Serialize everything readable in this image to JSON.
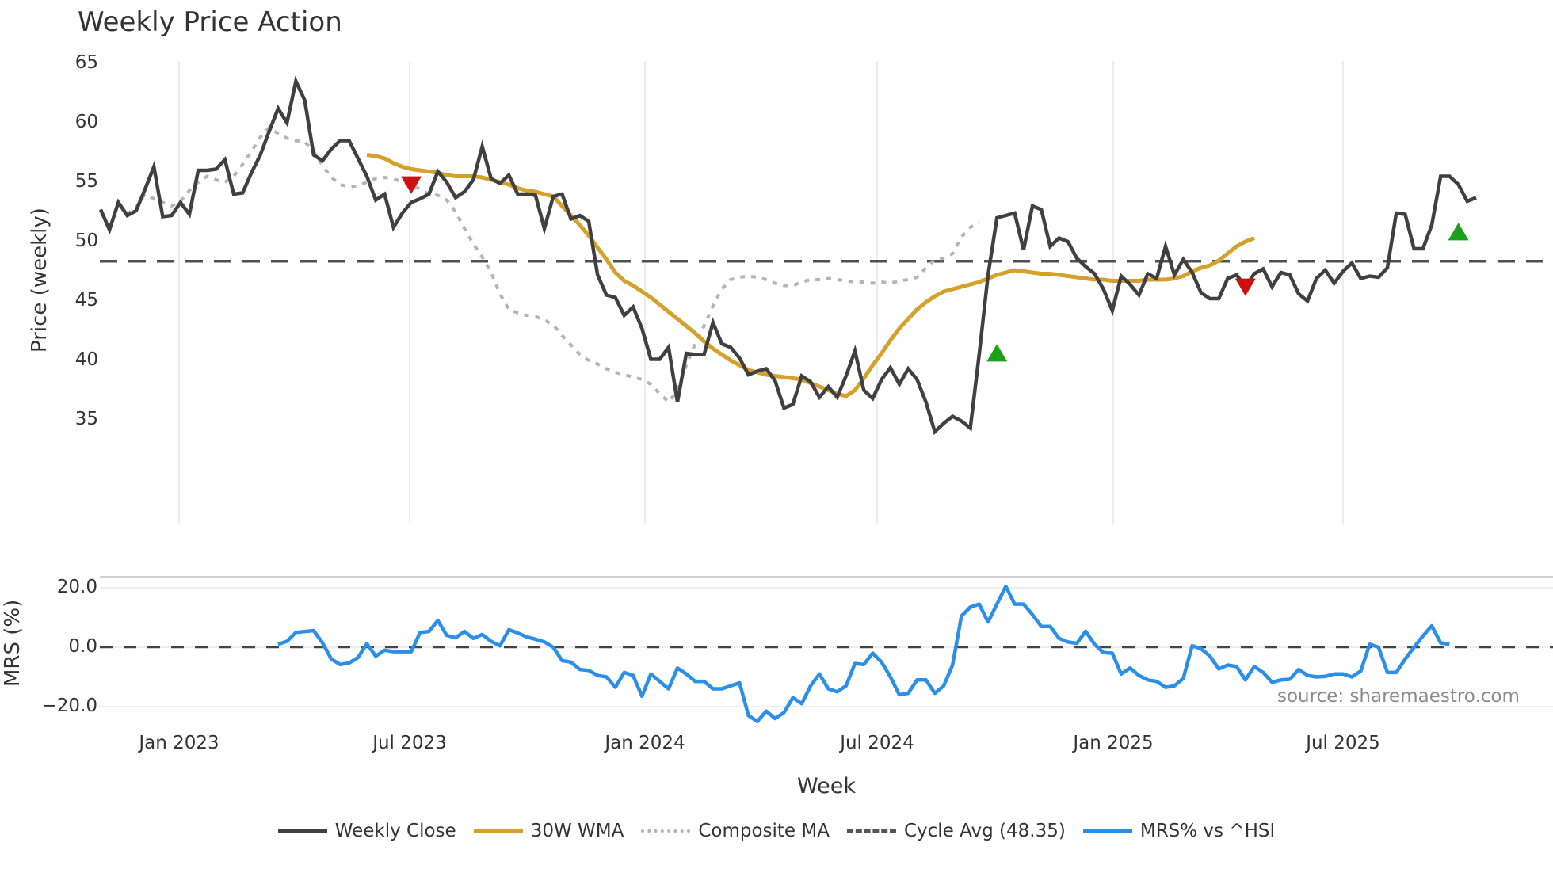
{
  "title": "Weekly Price Action",
  "source": "source: sharemaestro.com",
  "price_axis": {
    "label": "Price (weekly)",
    "ticks": [
      "65",
      "60",
      "55",
      "50",
      "45",
      "40",
      "35"
    ]
  },
  "mrs_axis": {
    "label": "MRS (%)",
    "ticks": [
      "20.0",
      "0.0",
      "−20.0"
    ]
  },
  "x_axis": {
    "label": "Week",
    "ticks": [
      "Jan 2023",
      "Jul 2023",
      "Jan 2024",
      "Jul 2024",
      "Jan 2025",
      "Jul 2025"
    ]
  },
  "legend": [
    {
      "label": "Weekly Close",
      "color": "#404040",
      "style": "solid"
    },
    {
      "label": "30W WMA",
      "color": "#d4a22c",
      "style": "solid"
    },
    {
      "label": "Composite MA",
      "color": "#b4b4b4",
      "style": "dotted"
    },
    {
      "label": "Cycle Avg (48.35)",
      "color": "#555555",
      "style": "dashed"
    },
    {
      "label": "MRS% vs ^HSI",
      "color": "#2b8ee8",
      "style": "solid"
    }
  ],
  "chart_data": [
    {
      "type": "line",
      "title": "Weekly Price Action",
      "xlabel": "Week",
      "ylabel": "Price (weekly)",
      "ylim": [
        32,
        65.5
      ],
      "x_tick_labels": [
        "Jan 2023",
        "Jul 2023",
        "Jan 2024",
        "Jul 2024",
        "Jan 2025",
        "Jul 2025"
      ],
      "grid": "vertical",
      "series": [
        {
          "name": "Weekly Close",
          "color": "#404040",
          "values": [
            52.7,
            51.0,
            53.3,
            52.2,
            52.6,
            54.4,
            56.3,
            52.1,
            52.2,
            53.3,
            52.3,
            56.0,
            56.0,
            56.1,
            56.9,
            54.0,
            54.1,
            55.8,
            57.3,
            59.3,
            61.2,
            60.0,
            63.5,
            61.9,
            57.3,
            56.8,
            57.8,
            58.5,
            58.5,
            57.0,
            55.5,
            53.5,
            54.0,
            51.2,
            52.4,
            53.3,
            53.6,
            54.0,
            55.9,
            55.0,
            53.7,
            54.2,
            55.2,
            58.0,
            55.3,
            54.9,
            55.6,
            54.0,
            54.0,
            53.9,
            51.1,
            53.8,
            54.0,
            51.9,
            52.2,
            51.7,
            47.2,
            45.5,
            45.3,
            43.8,
            44.5,
            42.7,
            40.1,
            40.1,
            41.1,
            36.5,
            40.6,
            40.5,
            40.5,
            43.2,
            41.4,
            41.1,
            40.2,
            38.8,
            39.1,
            39.3,
            38.3,
            36.0,
            36.3,
            38.7,
            38.2,
            36.9,
            37.8,
            36.9,
            38.7,
            40.8,
            37.5,
            36.8,
            38.4,
            39.4,
            38.0,
            39.3,
            38.4,
            36.5,
            34.0,
            34.7,
            35.3,
            34.9,
            34.3,
            40.5,
            47.2,
            52.0,
            52.2,
            52.4,
            49.3,
            53.0,
            52.7,
            49.6,
            50.3,
            50.0,
            48.6,
            47.9,
            47.3,
            46.0,
            44.2,
            47.1,
            46.4,
            45.5,
            47.3,
            46.9,
            49.6,
            47.2,
            48.5,
            47.4,
            45.7,
            45.2,
            45.2,
            46.9,
            47.2,
            46.2,
            47.3,
            47.7,
            46.2,
            47.4,
            47.2,
            45.6,
            45.0,
            46.9,
            47.6,
            46.5,
            47.5,
            48.2,
            46.9,
            47.1,
            47.0,
            47.8,
            52.4,
            52.3,
            49.4,
            49.4,
            51.4,
            55.5,
            55.5,
            54.8,
            53.4,
            53.7
          ]
        },
        {
          "name": "30W WMA",
          "color": "#d4a22c",
          "start_index": 30,
          "values": [
            57.3,
            57.2,
            57.0,
            56.6,
            56.3,
            56.1,
            56.0,
            55.9,
            55.8,
            55.6,
            55.5,
            55.5,
            55.5,
            55.4,
            55.2,
            55.0,
            54.8,
            54.5,
            54.3,
            54.2,
            54.0,
            53.8,
            53.0,
            52.2,
            51.4,
            50.5,
            49.5,
            48.5,
            47.4,
            46.7,
            46.3,
            45.8,
            45.3,
            44.7,
            44.1,
            43.5,
            42.9,
            42.3,
            41.6,
            41.0,
            40.5,
            40.0,
            39.6,
            39.2,
            39.0,
            38.8,
            38.7,
            38.6,
            38.5,
            38.4,
            38.1,
            37.8,
            37.5,
            37.2,
            37.0,
            37.5,
            38.5,
            39.6,
            40.6,
            41.7,
            42.7,
            43.5,
            44.3,
            44.9,
            45.4,
            45.8,
            46.0,
            46.2,
            46.4,
            46.6,
            46.9,
            47.2,
            47.4,
            47.6,
            47.5,
            47.4,
            47.3,
            47.3,
            47.2,
            47.1,
            47.0,
            46.9,
            46.8,
            46.8,
            46.7,
            46.7,
            46.7,
            46.7,
            46.8,
            46.8,
            46.8,
            46.9,
            47.1,
            47.5,
            47.8,
            48.0,
            48.4,
            49.0,
            49.6,
            50.0,
            50.3
          ]
        },
        {
          "name": "Composite MA",
          "color": "#b4b4b4",
          "start_index": 3,
          "values": [
            52.3,
            52.9,
            54.0,
            53.6,
            53.3,
            53.0,
            53.4,
            54.3,
            55.0,
            55.5,
            55.2,
            55.0,
            55.5,
            56.5,
            57.6,
            58.8,
            59.6,
            59.1,
            58.7,
            58.5,
            58.4,
            57.6,
            56.4,
            55.4,
            54.8,
            54.6,
            54.7,
            55.0,
            55.3,
            55.4,
            55.3,
            55.0,
            54.8,
            54.4,
            54.0,
            53.9,
            53.5,
            52.5,
            51.1,
            49.8,
            48.7,
            47.4,
            45.6,
            44.3,
            44.0,
            43.8,
            43.7,
            43.4,
            43.0,
            42.1,
            41.3,
            40.5,
            40.0,
            39.7,
            39.3,
            39.0,
            38.8,
            38.6,
            38.4,
            38.0,
            37.2,
            36.5,
            37.5,
            39.6,
            41.4,
            42.9,
            44.6,
            46.0,
            46.8,
            47.0,
            47.1,
            47.0,
            46.8,
            46.5,
            46.3,
            46.3,
            46.6,
            46.8,
            46.8,
            46.9,
            46.8,
            46.7,
            46.6,
            46.6,
            46.5,
            46.6,
            46.5,
            46.7,
            46.8,
            47.0,
            47.8,
            48.5,
            48.6,
            49.0,
            50.4,
            51.2,
            51.6
          ]
        },
        {
          "name": "Cycle Avg (48.35)",
          "color": "#555555",
          "constant": 48.35
        }
      ],
      "markers": [
        {
          "type": "sell",
          "shape": "triangle-down",
          "color": "#cc1111",
          "x_week_index": 35,
          "y": 54.8
        },
        {
          "type": "buy",
          "shape": "triangle-up",
          "color": "#1aa01a",
          "x_week_index": 101,
          "y": 40.6
        },
        {
          "type": "sell",
          "shape": "triangle-down",
          "color": "#cc1111",
          "x_week_index": 129,
          "y": 46.2
        },
        {
          "type": "buy",
          "shape": "triangle-up",
          "color": "#1aa01a",
          "x_week_index": 153,
          "y": 50.8
        }
      ]
    },
    {
      "type": "line",
      "title": "",
      "xlabel": "Week",
      "ylabel": "MRS (%)",
      "ylim": [
        -25,
        23
      ],
      "series": [
        {
          "name": "MRS% vs ^HSI",
          "color": "#2b8ee8",
          "start_index": 20,
          "values": [
            1.0,
            2.0,
            5.0,
            5.3,
            5.6,
            1.5,
            -4.0,
            -5.8,
            -5.3,
            -3.5,
            1.2,
            -3.0,
            -1.0,
            -1.5,
            -1.5,
            -1.5,
            5.0,
            5.3,
            9.0,
            4.0,
            3.2,
            5.3,
            3.0,
            4.3,
            2.0,
            0.5,
            5.9,
            4.8,
            3.5,
            2.7,
            1.8,
            0.0,
            -4.5,
            -5.0,
            -7.5,
            -7.8,
            -9.5,
            -10.0,
            -13.5,
            -8.5,
            -9.5,
            -16.5,
            -9.0,
            -11.5,
            -14.0,
            -7.0,
            -9.0,
            -11.5,
            -11.5,
            -14.0,
            -14.0,
            -13.0,
            -12.0,
            -23.0,
            -25.0,
            -21.5,
            -24.0,
            -22.0,
            -17.0,
            -19.0,
            -13.0,
            -9.0,
            -14.0,
            -15.0,
            -13.0,
            -5.5,
            -5.8,
            -2.0,
            -5.0,
            -10.0,
            -16.0,
            -15.5,
            -11.0,
            -11.0,
            -15.5,
            -13.0,
            -6.0,
            10.5,
            13.5,
            14.5,
            8.5,
            14.5,
            20.5,
            14.5,
            14.5,
            11.0,
            7.0,
            7.0,
            3.0,
            1.8,
            1.3,
            5.4,
            1.0,
            -1.8,
            -2.0,
            -9.0,
            -7.0,
            -9.5,
            -11.0,
            -11.5,
            -13.5,
            -13.0,
            -10.5,
            0.5,
            -0.5,
            -3.0,
            -7.3,
            -6.0,
            -6.5,
            -11.0,
            -6.5,
            -8.5,
            -11.8,
            -11.0,
            -10.8,
            -7.5,
            -9.5,
            -10.0,
            -9.8,
            -9.0,
            -9.0,
            -10.0,
            -8.0,
            1.0,
            0.0,
            -8.5,
            -8.5,
            -4.0,
            0.0,
            3.8,
            7.2,
            1.5,
            1.0
          ]
        },
        {
          "name": "Zero line",
          "color": "#444444",
          "constant": 0
        }
      ]
    }
  ]
}
